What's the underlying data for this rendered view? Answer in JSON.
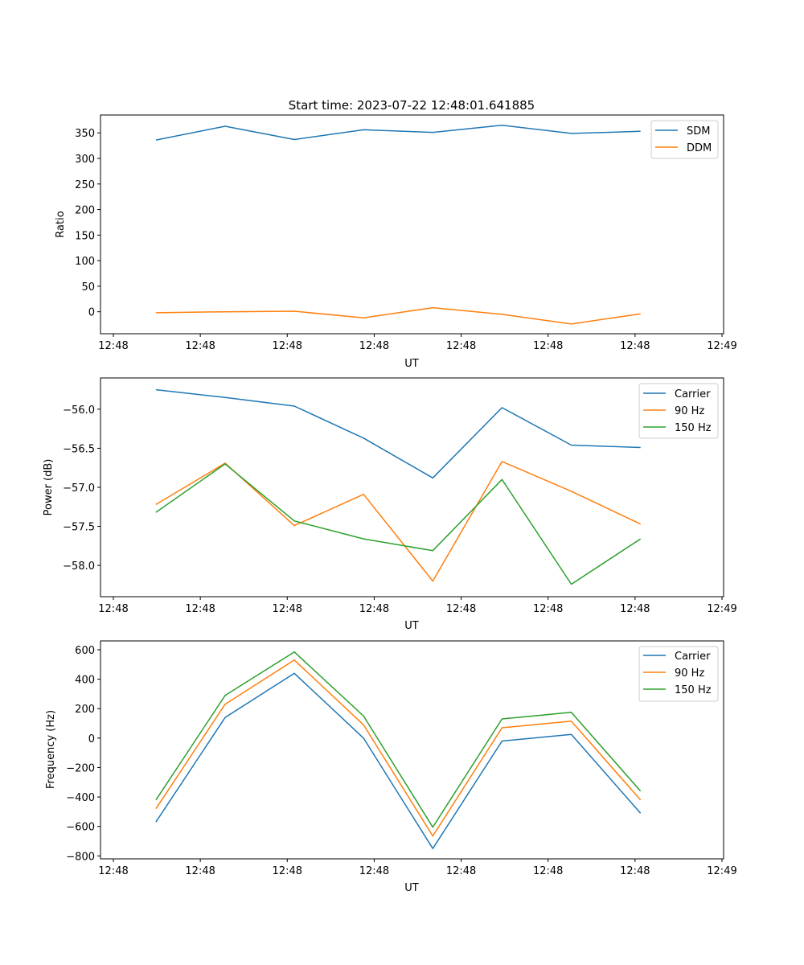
{
  "figure_title": "Start time: 2023-07-22 12:48:01.641885",
  "colors": {
    "blue": "#1f77b4",
    "orange": "#ff7f0e",
    "green": "#2ca02c"
  },
  "x_tick_labels": [
    "12:48",
    "12:48",
    "12:48",
    "12:48",
    "12:48",
    "12:48",
    "12:48",
    "12:49"
  ],
  "chart_data": [
    {
      "type": "line",
      "title": "Start time: 2023-07-22 12:48:01.641885",
      "xlabel": "UT",
      "ylabel": "Ratio",
      "x": [
        1,
        2,
        3,
        4,
        5,
        6,
        7,
        8
      ],
      "xlim": [
        0.2,
        9.2
      ],
      "ylim": [
        -43,
        385
      ],
      "yticks": [
        0,
        50,
        100,
        150,
        200,
        250,
        300,
        350
      ],
      "ytick_labels": [
        "0",
        "50",
        "100",
        "150",
        "200",
        "250",
        "300",
        "350"
      ],
      "legend": "top-right",
      "series": [
        {
          "name": "SDM",
          "color": "blue",
          "values": [
            336,
            363,
            337,
            356,
            351,
            365,
            349,
            353
          ]
        },
        {
          "name": "DDM",
          "color": "orange",
          "values": [
            -2,
            0,
            1,
            -12,
            8,
            -5,
            -24,
            -4
          ]
        }
      ]
    },
    {
      "type": "line",
      "title": "",
      "xlabel": "UT",
      "ylabel": "Power (dB)",
      "x": [
        1,
        2,
        3,
        4,
        5,
        6,
        7,
        8
      ],
      "xlim": [
        0.2,
        9.2
      ],
      "ylim": [
        -58.4,
        -55.6
      ],
      "yticks": [
        -56.0,
        -56.5,
        -57.0,
        -57.5,
        -58.0
      ],
      "ytick_labels": [
        "−56.0",
        "−56.5",
        "−57.0",
        "−57.5",
        "−58.0"
      ],
      "legend": "top-right",
      "series": [
        {
          "name": "Carrier",
          "color": "blue",
          "values": [
            -55.75,
            -55.85,
            -55.96,
            -56.37,
            -56.88,
            -55.98,
            -56.46,
            -56.49
          ]
        },
        {
          "name": "90 Hz",
          "color": "orange",
          "values": [
            -57.22,
            -56.69,
            -57.49,
            -57.09,
            -58.2,
            -56.67,
            -57.05,
            -57.47
          ]
        },
        {
          "name": "150 Hz",
          "color": "green",
          "values": [
            -57.32,
            -56.7,
            -57.43,
            -57.66,
            -57.81,
            -56.9,
            -58.24,
            -57.66
          ]
        }
      ]
    },
    {
      "type": "line",
      "title": "",
      "xlabel": "UT",
      "ylabel": "Frequency (Hz)",
      "x": [
        1,
        2,
        3,
        4,
        5,
        6,
        7,
        8
      ],
      "xlim": [
        0.2,
        9.2
      ],
      "ylim": [
        -820,
        660
      ],
      "yticks": [
        600,
        400,
        200,
        0,
        -200,
        -400,
        -600,
        -800
      ],
      "ytick_labels": [
        "600",
        "400",
        "200",
        "0",
        "−200",
        "−400",
        "−600",
        "−800"
      ],
      "legend": "top-right",
      "series": [
        {
          "name": "Carrier",
          "color": "blue",
          "values": [
            -570,
            140,
            440,
            0,
            -750,
            -20,
            25,
            -510
          ]
        },
        {
          "name": "90 Hz",
          "color": "orange",
          "values": [
            -480,
            230,
            530,
            90,
            -665,
            70,
            115,
            -420
          ]
        },
        {
          "name": "150 Hz",
          "color": "green",
          "values": [
            -420,
            290,
            585,
            150,
            -605,
            130,
            175,
            -360
          ]
        }
      ]
    }
  ]
}
